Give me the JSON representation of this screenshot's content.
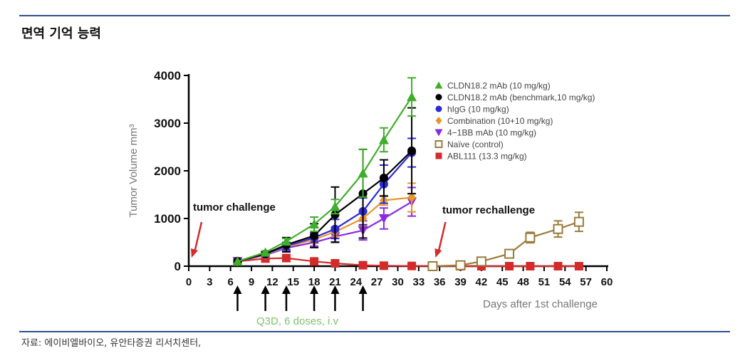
{
  "header": {
    "title": "면역 기억 능력"
  },
  "footer": {
    "source": "자료: 에이비엘바이오, 유안타증권 리서치센터,"
  },
  "chart_data": {
    "type": "line",
    "title": "",
    "xlabel": "Days after 1st challenge",
    "ylabel": "Tumor Volume mm³",
    "xlim": [
      0,
      60
    ],
    "ylim": [
      0,
      4000
    ],
    "x_ticks": [
      0,
      3,
      6,
      9,
      12,
      15,
      18,
      21,
      24,
      27,
      30,
      33,
      36,
      39,
      42,
      45,
      48,
      51,
      54,
      57,
      60
    ],
    "y_ticks": [
      0,
      1000,
      2000,
      3000,
      4000
    ],
    "legend_position": "top-right",
    "series": [
      {
        "name": "CLDN18.2 mAb (10 mg/kg)",
        "color": "#3fae2a",
        "marker": "triangle",
        "x": [
          7,
          11,
          14,
          18,
          21,
          25,
          28,
          32
        ],
        "y": [
          100,
          290,
          520,
          880,
          1250,
          1950,
          2650,
          3550
        ],
        "err": [
          0,
          30,
          60,
          150,
          150,
          500,
          250,
          400
        ]
      },
      {
        "name": "CLDN18.2 mAb (benchmark,10 mg/kg)",
        "color": "#000000",
        "marker": "circle",
        "x": [
          7,
          11,
          14,
          18,
          21,
          25,
          28,
          32
        ],
        "y": [
          100,
          260,
          450,
          640,
          1080,
          1520,
          1850,
          2420
        ],
        "err": [
          0,
          40,
          150,
          250,
          580,
          930,
          380,
          900
        ]
      },
      {
        "name": "hIgG (10 mg/kg)",
        "color": "#2a2ad8",
        "marker": "circle",
        "x": [
          7,
          11,
          14,
          18,
          21,
          25,
          28,
          32
        ],
        "y": [
          100,
          250,
          420,
          600,
          780,
          1150,
          1720,
          2380
        ],
        "err": [
          0,
          30,
          80,
          100,
          200,
          280,
          400,
          300
        ]
      },
      {
        "name": "Combination (10+10 mg/kg)",
        "color": "#e8962a",
        "marker": "diamond",
        "x": [
          7,
          11,
          14,
          18,
          21,
          25,
          28,
          32
        ],
        "y": [
          100,
          240,
          400,
          560,
          720,
          1000,
          1380,
          1440
        ],
        "err": [
          0,
          30,
          60,
          80,
          100,
          150,
          100,
          300
        ]
      },
      {
        "name": "4−1BB mAb (10 mg/kg)",
        "color": "#8a2be2",
        "marker": "triangle-down",
        "x": [
          7,
          11,
          14,
          18,
          21,
          25,
          28,
          32
        ],
        "y": [
          100,
          230,
          380,
          500,
          620,
          750,
          1000,
          1350
        ],
        "err": [
          0,
          30,
          50,
          80,
          110,
          200,
          220,
          300
        ]
      },
      {
        "name": "Naïve (control)",
        "color": "#9a7b3a",
        "marker": "square-open",
        "x": [
          35,
          39,
          42,
          46,
          49,
          53,
          56
        ],
        "y": [
          0,
          20,
          100,
          260,
          600,
          780,
          930
        ],
        "err": [
          0,
          0,
          30,
          50,
          110,
          170,
          200
        ]
      },
      {
        "name": "ABL111 (13.3 mg/kg)",
        "color": "#d42a2a",
        "marker": "square",
        "x": [
          7,
          11,
          14,
          18,
          21,
          25,
          28,
          32,
          35,
          39,
          42,
          46,
          49,
          53,
          56
        ],
        "y": [
          100,
          160,
          170,
          100,
          60,
          20,
          10,
          5,
          5,
          0,
          0,
          0,
          0,
          0,
          0
        ],
        "err": [
          0,
          20,
          20,
          20,
          15,
          0,
          0,
          0,
          0,
          0,
          0,
          0,
          0,
          0,
          0
        ]
      }
    ],
    "annotations": {
      "challenge_label": "tumor challenge",
      "challenge_day": 0,
      "rechallenge_label": "tumor rechallenge",
      "rechallenge_day": 35,
      "dosing_label": "Q3D, 6 doses, i.v",
      "dosing_days": [
        7,
        11,
        14,
        18,
        21,
        25
      ],
      "colors": {
        "challenge_arrow": "#d42a2a",
        "dosing_arrow": "#000000",
        "dosing_label": "#7cc36a"
      }
    }
  }
}
